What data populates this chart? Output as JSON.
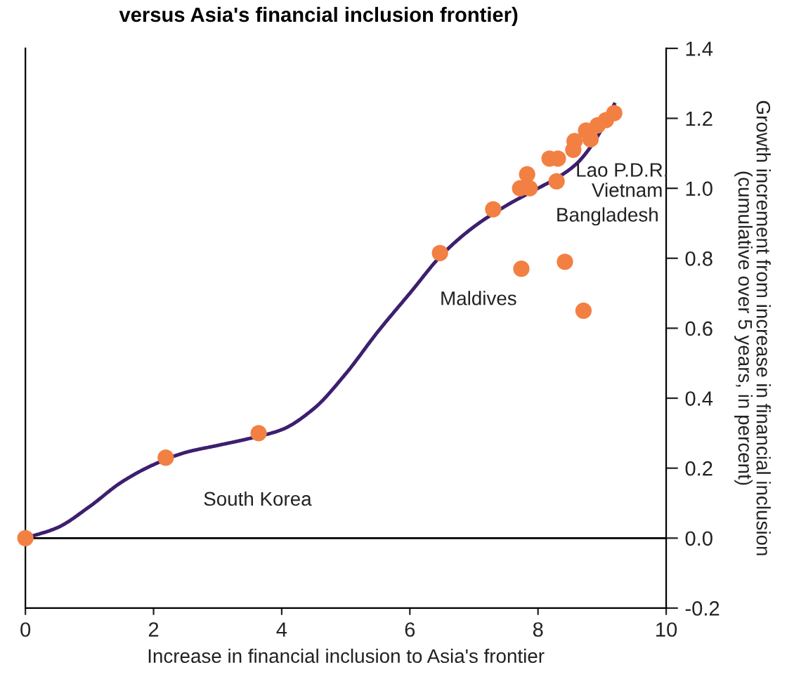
{
  "chart_data": {
    "type": "scatter",
    "title": "versus Asia's financial inclusion frontier)",
    "xlabel": "Increase in financial inclusion to Asia's frontier",
    "ylabel": "Growth increment from increase in financial inclusion\n(cumulative over 5 years, in percent)",
    "xlim": [
      0,
      10
    ],
    "xticks": [
      0,
      2,
      4,
      6,
      8,
      10
    ],
    "ylim": [
      -0.2,
      1.4
    ],
    "yticks": [
      -0.2,
      {
        "value": 0,
        "label": "0.0"
      },
      0.2,
      0.4,
      0.6,
      0.8,
      {
        "value": 1,
        "label": "1.0"
      },
      1.2,
      1.4
    ],
    "grid": false,
    "legend": false,
    "marker": "circle",
    "series": [
      {
        "type": "line",
        "color": "#3d1f6e",
        "line_style": "solid",
        "marker": "none",
        "x": [
          0,
          0.5,
          1,
          1.5,
          2,
          2.5,
          3,
          3.5,
          4,
          4.5,
          5,
          5.5,
          6,
          6.5,
          7,
          7.5,
          8,
          8.3,
          8.6,
          8.9,
          9.19
        ],
        "values": [
          0,
          0.03,
          0.09,
          0.16,
          0.21,
          0.245,
          0.265,
          0.285,
          0.31,
          0.37,
          0.47,
          0.59,
          0.7,
          0.81,
          0.89,
          0.95,
          1.0,
          1.03,
          1.07,
          1.14,
          1.24
        ]
      },
      {
        "color": "#f28043",
        "x": [
          0,
          2.19,
          3.64,
          6.47,
          7.3,
          7.74,
          8.42,
          8.71,
          8.29,
          7.72,
          7.83,
          7.87,
          8.16,
          8.18,
          8.31,
          8.55,
          8.57,
          8.75,
          8.82,
          8.93,
          9.06,
          9.19
        ],
        "values": [
          0,
          0.23,
          0.3,
          0.815,
          0.94,
          0.77,
          0.79,
          0.65,
          1.02,
          1.0,
          1.04,
          1.0,
          null,
          1.085,
          1.085,
          1.11,
          1.135,
          1.165,
          1.14,
          1.18,
          1.195,
          1.215
        ]
      }
    ],
    "ref_lines": [
      {
        "axis": "y",
        "value": 0,
        "color": "#000000",
        "line_style": "solid"
      }
    ],
    "annotations": [
      {
        "text": "South Korea",
        "x": 2.19,
        "y": 0.23
      },
      {
        "text": "Maldives",
        "x": 7.74,
        "y": 0.77
      },
      {
        "text": "Bangladesh",
        "x": 8.29,
        "y": 1.02
      },
      {
        "text": "Vietnam",
        "x": 8.57,
        "y": 1.135
      },
      {
        "text": "Lao P.D.R.",
        "x": 9.19,
        "y": 1.215
      }
    ]
  }
}
